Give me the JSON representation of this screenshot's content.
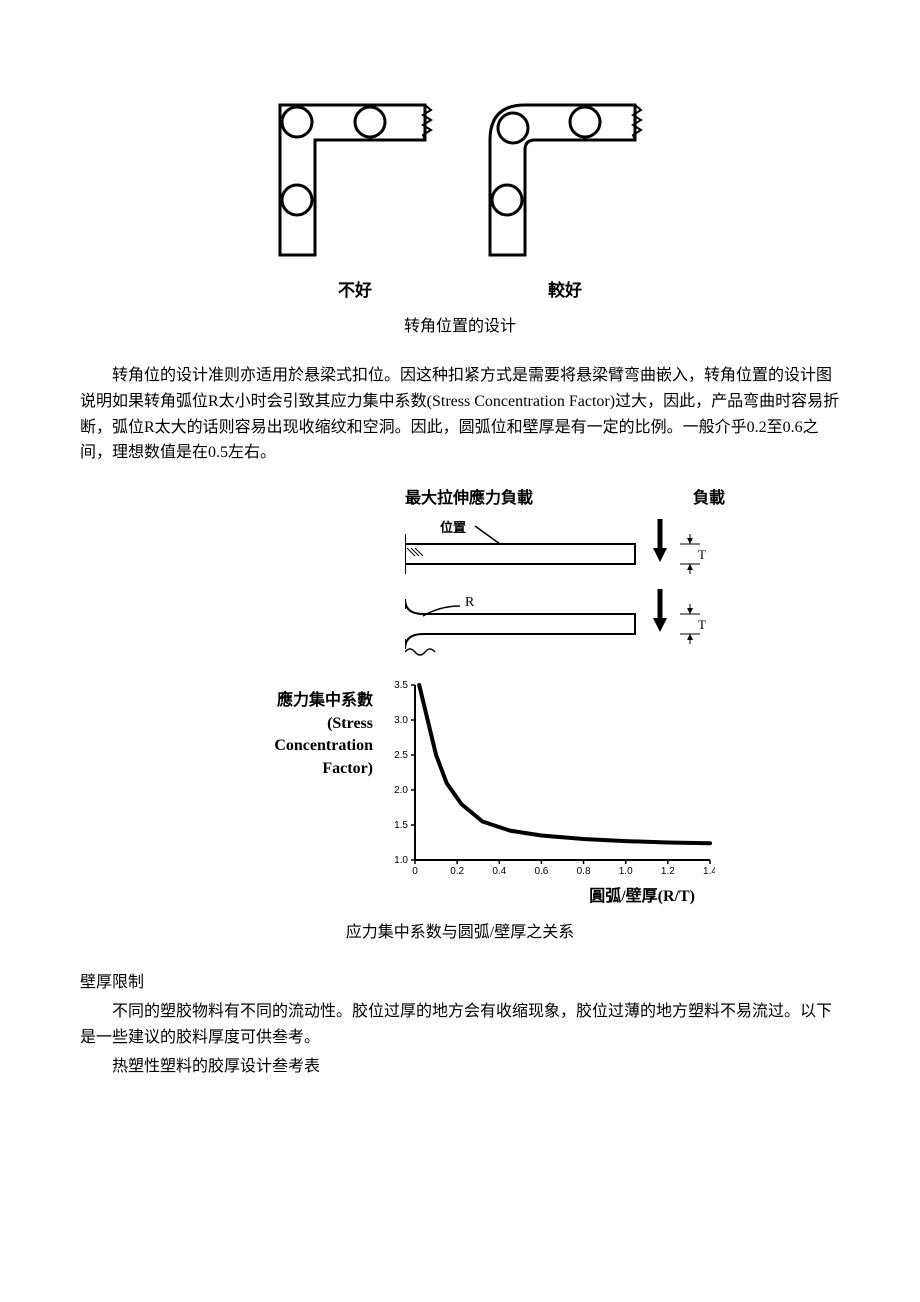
{
  "figure1": {
    "left_label": "不好",
    "right_label": "較好",
    "caption": "转角位置的设计"
  },
  "para1": "转角位的设计准则亦适用於悬梁式扣位。因这种扣紧方式是需要将悬梁臂弯曲嵌入，转角位置的设计图说明如果转角弧位R太小时会引致其应力集中系数(Stress Concentration Factor)过大，因此，产品弯曲时容易折断，弧位R太大的话则容易出现收缩纹和空洞。因此，圆弧位和壁厚是有一定的比例。一般介乎0.2至0.6之间，理想数值是在0.5左右。",
  "chart": {
    "top_label_left": "最大拉伸應力負載",
    "top_label_right": "負載",
    "sub_label": "位置",
    "beam_radius_label": "R",
    "beam_thickness_label": "T",
    "y_label_cn": "應力集中系數",
    "y_label_en1": "(Stress",
    "y_label_en2": "Concentration",
    "y_label_en3": "Factor)",
    "x_label": "圓弧/壁厚(R/T)",
    "y_ticks": [
      "1.0",
      "1.5",
      "2.0",
      "2.5",
      "3.0",
      "3.5"
    ],
    "x_ticks": [
      "0",
      "0.2",
      "0.4",
      "0.6",
      "0.8",
      "1.0",
      "1.2",
      "1.4"
    ],
    "curve_points": [
      [
        0.02,
        3.5
      ],
      [
        0.06,
        3.0
      ],
      [
        0.1,
        2.5
      ],
      [
        0.15,
        2.1
      ],
      [
        0.22,
        1.8
      ],
      [
        0.32,
        1.55
      ],
      [
        0.45,
        1.42
      ],
      [
        0.6,
        1.35
      ],
      [
        0.8,
        1.3
      ],
      [
        1.0,
        1.27
      ],
      [
        1.2,
        1.25
      ],
      [
        1.4,
        1.24
      ]
    ],
    "curve_color": "#000000",
    "curve_width": 4,
    "axis_color": "#000000",
    "background": "#ffffff",
    "caption": "应力集中系数与圆弧/壁厚之关系"
  },
  "section_heading": "壁厚限制",
  "para2": "不同的塑胶物料有不同的流动性。胶位过厚的地方会有收缩现象，胶位过薄的地方塑料不易流过。以下是一些建议的胶料厚度可供叁考。",
  "para3": "热塑性塑料的胶厚设计叁考表"
}
